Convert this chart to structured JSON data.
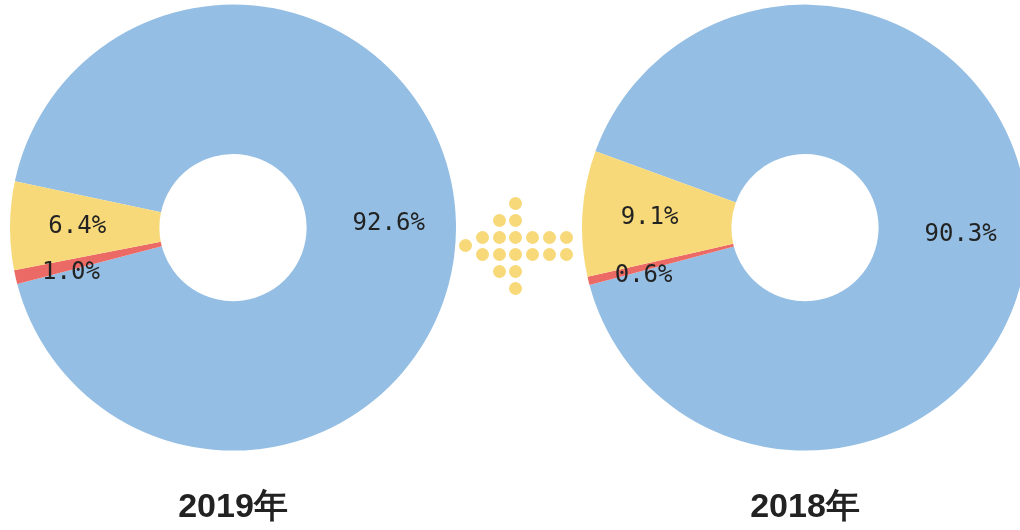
{
  "chart_data": [
    {
      "type": "donut",
      "title": "2019年",
      "categories": [
        null,
        null,
        null
      ],
      "values": [
        92.6,
        1.0,
        6.4
      ],
      "colors": [
        "#94bee3",
        "#ec6a65",
        "#f8d97a"
      ],
      "value_labels": [
        "92.6%",
        "1.0%",
        "6.4%"
      ]
    },
    {
      "type": "donut",
      "title": "2018年",
      "categories": [
        null,
        null,
        null
      ],
      "values": [
        90.3,
        0.6,
        9.1
      ],
      "colors": [
        "#94bee3",
        "#ec6a65",
        "#f8d97a"
      ],
      "value_labels": [
        "90.3%",
        "0.6%",
        "9.1%"
      ]
    }
  ]
}
